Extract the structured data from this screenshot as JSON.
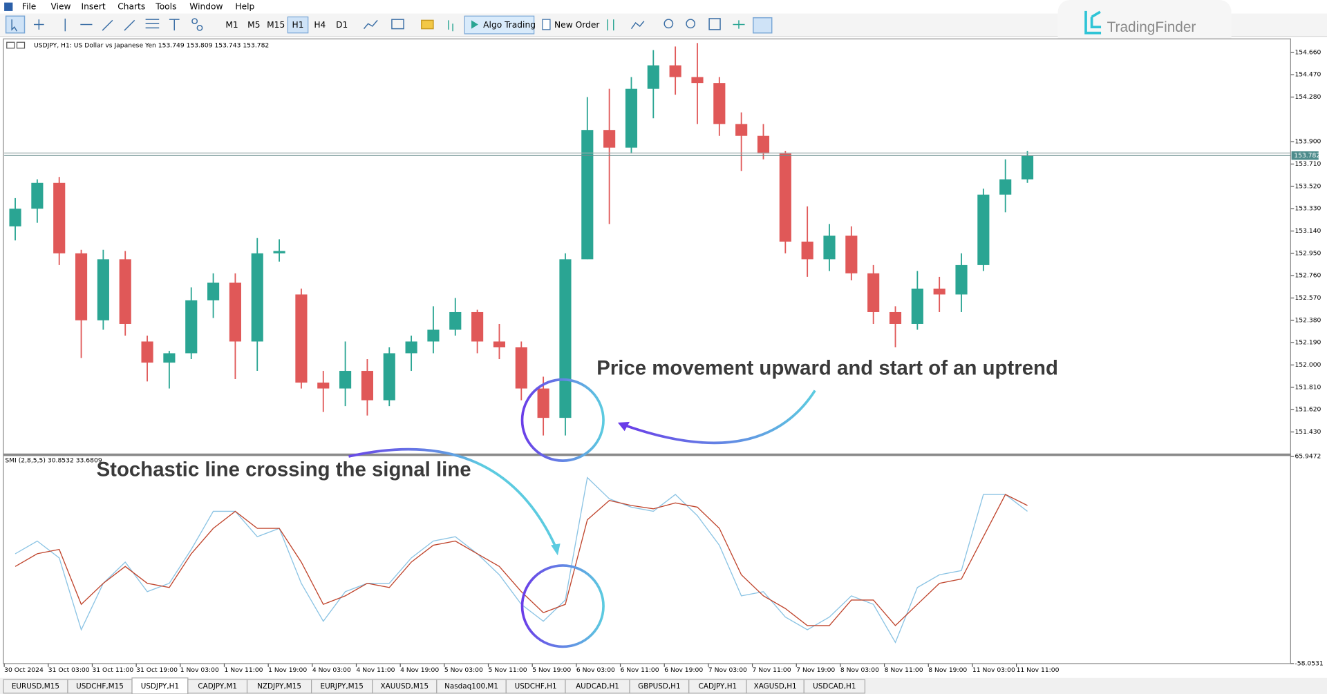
{
  "menu": [
    "File",
    "View",
    "Insert",
    "Charts",
    "Tools",
    "Window",
    "Help"
  ],
  "toolbar": {
    "timeframes": [
      "M1",
      "M5",
      "M15",
      "H1",
      "H4",
      "D1"
    ],
    "algo_trading": "Algo Trading",
    "new_order": "New Order"
  },
  "logo": "TradingFinder",
  "annotations": [
    "Price movement upward and start of an uptrend",
    "Stochastic line crossing the signal line"
  ],
  "tabs": [
    "EURUSD,M15",
    "USDCHF,M15",
    "USDJPY,H1",
    "CADJPY,M1",
    "NZDJPY,M15",
    "EURJPY,M15",
    "XAUUSD,M15",
    "Nasdaq100,M1",
    "USDCHF,H1",
    "AUDCAD,H1",
    "GBPUSD,H1",
    "CADJPY,H1",
    "XAGUSD,H1",
    "USDCAD,H1"
  ],
  "chart_data": [
    {
      "type": "candlestick",
      "title": "USDJPY, H1: US Dollar vs Japanese Yen 153.749 153.809 153.743 153.782",
      "categories": [
        "30 Oct 2024",
        null,
        "31 Oct 03:00",
        null,
        "31 Oct 11:00",
        null,
        "31 Oct 19:00",
        null,
        "1 Nov 03:00",
        null,
        "1 Nov 11:00",
        null,
        "1 Nov 19:00",
        null,
        "4 Nov 03:00",
        null,
        "4 Nov 11:00",
        null,
        "4 Nov 19:00",
        null,
        "5 Nov 03:00",
        null,
        "5 Nov 11:00",
        null,
        "5 Nov 19:00",
        null,
        "6 Nov 03:00",
        null,
        "6 Nov 11:00",
        null,
        "6 Nov 19:00",
        null,
        "7 Nov 03:00",
        null,
        "7 Nov 11:00",
        null,
        "7 Nov 19:00",
        null,
        "8 Nov 03:00",
        null,
        "8 Nov 11:00",
        null,
        "8 Nov 19:00",
        null,
        "11 Nov 03:00",
        null,
        "11 Nov 11:00"
      ],
      "open": [
        153.18,
        153.33,
        153.55,
        152.95,
        152.38,
        152.9,
        152.2,
        152.02,
        152.1,
        152.55,
        152.7,
        152.2,
        152.95,
        152.6,
        151.85,
        151.8,
        151.95,
        151.7,
        152.1,
        152.2,
        152.3,
        152.45,
        152.2,
        152.15,
        151.8,
        151.55,
        152.9,
        154.0,
        153.85,
        154.35,
        154.55,
        154.45,
        154.4,
        154.05,
        153.95,
        153.8,
        153.05,
        152.9,
        153.1,
        152.78,
        152.45,
        152.35,
        152.65,
        152.6,
        152.85,
        153.45,
        153.58
      ],
      "high": [
        153.42,
        153.58,
        153.6,
        152.98,
        152.98,
        152.97,
        152.25,
        152.12,
        152.66,
        152.78,
        152.78,
        153.08,
        153.07,
        152.65,
        151.95,
        152.2,
        152.05,
        152.15,
        152.25,
        152.5,
        152.57,
        152.47,
        152.35,
        152.2,
        151.9,
        152.95,
        154.28,
        154.35,
        154.45,
        154.68,
        154.71,
        154.74,
        154.45,
        154.15,
        154.05,
        153.82,
        153.35,
        153.2,
        153.18,
        152.85,
        152.5,
        152.8,
        152.75,
        152.95,
        153.5,
        153.75,
        153.82
      ],
      "low": [
        153.06,
        153.21,
        152.85,
        152.06,
        152.3,
        152.25,
        151.86,
        151.8,
        152.05,
        152.4,
        151.88,
        151.95,
        152.88,
        151.8,
        151.6,
        151.65,
        151.57,
        151.65,
        151.95,
        152.1,
        152.25,
        152.1,
        152.05,
        151.7,
        151.4,
        151.4,
        152.9,
        153.2,
        153.8,
        154.1,
        154.3,
        154.05,
        153.95,
        153.65,
        153.75,
        152.95,
        152.75,
        152.8,
        152.72,
        152.35,
        152.15,
        152.3,
        152.45,
        152.45,
        152.8,
        153.3,
        153.55
      ],
      "close": [
        153.33,
        153.55,
        152.95,
        152.38,
        152.9,
        152.35,
        152.02,
        152.1,
        152.55,
        152.7,
        152.2,
        152.95,
        152.97,
        151.85,
        151.8,
        151.95,
        151.7,
        152.1,
        152.2,
        152.3,
        152.45,
        152.2,
        152.15,
        151.8,
        151.55,
        152.9,
        154.0,
        153.85,
        154.35,
        154.55,
        154.45,
        154.4,
        154.05,
        153.95,
        153.8,
        153.05,
        152.9,
        153.1,
        152.78,
        152.45,
        152.35,
        152.65,
        152.6,
        152.85,
        153.45,
        153.58,
        153.78
      ],
      "up_color": "#2aa593",
      "down_color": "#e05858",
      "ylim": [
        151.243,
        154.768
      ],
      "yticks": [
        {
          "value": 154.66,
          "label": "154.660"
        },
        {
          "value": 154.47,
          "label": "154.470"
        },
        {
          "value": 154.28,
          "label": "154.280"
        },
        {
          "value": 153.9,
          "label": "153.900"
        },
        {
          "value": 153.71,
          "label": "153.710"
        },
        {
          "value": 153.52,
          "label": "153.520"
        },
        {
          "value": 153.33,
          "label": "153.330"
        },
        {
          "value": 153.14,
          "label": "153.140"
        },
        {
          "value": 152.95,
          "label": "152.950"
        },
        {
          "value": 152.76,
          "label": "152.760"
        },
        {
          "value": 152.57,
          "label": "152.570"
        },
        {
          "value": 152.38,
          "label": "152.380"
        },
        {
          "value": 152.19,
          "label": "152.190"
        },
        {
          "value": 152.0,
          "label": "152.000"
        },
        {
          "value": 151.81,
          "label": "151.810"
        },
        {
          "value": 151.62,
          "label": "151.620"
        },
        {
          "value": 151.43,
          "label": "151.430"
        }
      ],
      "price_line": {
        "value": 153.782,
        "label": "153.782"
      },
      "grid": false
    },
    {
      "type": "line",
      "title": "SMI (2,8,5,5) 30.8532 33.6809",
      "series": [
        {
          "color": "#8cc4e4",
          "values": [
            7.7,
            15.3,
            5.2,
            -37.8,
            -10,
            2.7,
            -15,
            -10,
            10.3,
            33.1,
            33.1,
            17.9,
            22.9,
            -10,
            -32.7,
            -15,
            -10,
            -10,
            5.2,
            15.3,
            17.9,
            7.7,
            -4.9,
            -22.6,
            -32.7,
            -20,
            53.3,
            40.6,
            35.6,
            33.1,
            43.2,
            30.5,
            12.8,
            -17.5,
            -15,
            -30.2,
            -37.8,
            -30.2,
            -17.5,
            -22.6,
            -45.4,
            -12.5,
            -4.9,
            -2.4,
            43.2,
            43.2,
            33.1
          ]
        },
        {
          "color": "#c0462e",
          "values": [
            0.1,
            7.7,
            10.3,
            -22.6,
            -10,
            0.1,
            -10,
            -12.5,
            7.7,
            22.9,
            33.1,
            22.9,
            22.9,
            2.7,
            -22.6,
            -17.5,
            -10,
            -12.5,
            2.7,
            12.8,
            15.3,
            7.7,
            0.1,
            -15,
            -27.6,
            -22.6,
            28,
            39.6,
            36.6,
            34.6,
            38.1,
            35.6,
            22.9,
            -4.9,
            -17.5,
            -25.1,
            -35.3,
            -35.3,
            -20,
            -20,
            -35.3,
            -22.6,
            -10,
            -7.4,
            17.9,
            43.2,
            36.6
          ]
        }
      ],
      "ylim": [
        -58.0531,
        65.9472
      ],
      "yticks": [
        65.9472,
        -58.0531
      ],
      "grid": false
    }
  ]
}
